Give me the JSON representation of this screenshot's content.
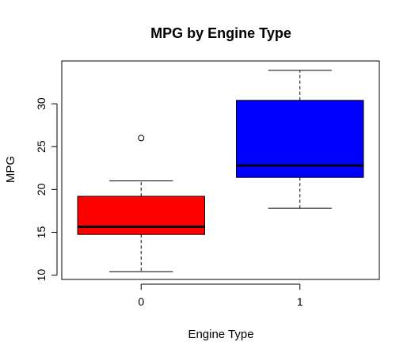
{
  "chart_data": {
    "type": "box",
    "title": "MPG by Engine Type",
    "xlabel": "Engine Type",
    "ylabel": "MPG",
    "categories": [
      "0",
      "1"
    ],
    "ylim": [
      9.5,
      35
    ],
    "yticks": [
      10,
      15,
      20,
      25,
      30
    ],
    "ytick_labels": [
      "10",
      "15",
      "20",
      "25",
      "30"
    ],
    "grid": false,
    "boxes": [
      {
        "category": "0",
        "whisker_low": 10.4,
        "q1": 14.75,
        "median": 15.65,
        "q3": 19.2,
        "whisker_high": 21.0,
        "outliers": [
          26.0
        ],
        "color": "#ff0000"
      },
      {
        "category": "1",
        "whisker_low": 17.8,
        "q1": 21.4,
        "median": 22.8,
        "q3": 30.4,
        "whisker_high": 33.9,
        "outliers": [],
        "color": "#0000ff"
      }
    ]
  }
}
